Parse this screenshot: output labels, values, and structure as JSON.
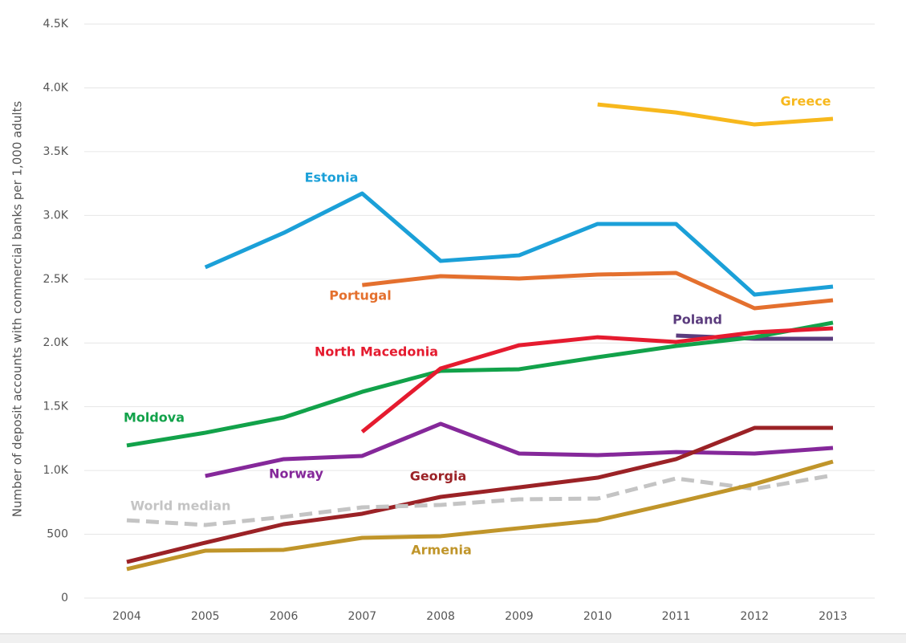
{
  "chart_data": {
    "type": "line",
    "y_label": "Number of deposit accounts with commercial banks per 1,000 adults",
    "categories": [
      "2004",
      "2005",
      "2006",
      "2007",
      "2008",
      "2009",
      "2010",
      "2011",
      "2012",
      "2013"
    ],
    "ylim": [
      0,
      4500
    ],
    "yticks": [
      0,
      500,
      {
        "value": 1000,
        "label": "1.0K"
      },
      {
        "value": 1500,
        "label": "1.5K"
      },
      {
        "value": 2000,
        "label": "2.0K"
      },
      {
        "value": 2500,
        "label": "2.5K"
      },
      {
        "value": 3000,
        "label": "3.0K"
      },
      {
        "value": 3500,
        "label": "3.5K"
      },
      {
        "value": 4000,
        "label": "4.0K"
      },
      {
        "value": 4500,
        "label": "4.5K"
      }
    ],
    "grid": true,
    "series": [
      {
        "name": "Greece",
        "color": "#f7b81d",
        "values": [
          null,
          null,
          null,
          null,
          null,
          null,
          3870,
          3807,
          3713,
          3757
        ]
      },
      {
        "name": "Estonia",
        "color": "#1ba0d8",
        "values": [
          null,
          2593,
          2863,
          3172,
          2643,
          2687,
          2933,
          2933,
          2379,
          2442
        ]
      },
      {
        "name": "Portugal",
        "color": "#e4702e",
        "values": [
          null,
          null,
          null,
          2454,
          2524,
          2505,
          2536,
          2549,
          2272,
          2335
        ]
      },
      {
        "name": "Poland",
        "color": "#5b3c7e",
        "values": [
          null,
          null,
          null,
          null,
          null,
          null,
          null,
          2058,
          2033,
          2033
        ]
      },
      {
        "name": "Moldova",
        "color": "#12a24a",
        "values": [
          1196,
          1296,
          1416,
          1617,
          1781,
          1794,
          1888,
          1976,
          2045,
          2159
        ]
      },
      {
        "name": "North Macedonia",
        "color": "#e51b2f",
        "values": [
          null,
          null,
          null,
          1303,
          1800,
          1982,
          2045,
          2008,
          2083,
          2115
        ]
      },
      {
        "name": "Norway",
        "color": "#85289a",
        "values": [
          null,
          957,
          1089,
          1114,
          1366,
          1133,
          1120,
          1145,
          1133,
          1177
        ]
      },
      {
        "name": "Georgia",
        "color": "#9b2226",
        "values": [
          283,
          434,
          579,
          661,
          793,
          868,
          944,
          1089,
          1334,
          1334
        ]
      },
      {
        "name": "World median",
        "color": "#c4c4c4",
        "dashed": true,
        "values": [
          610,
          573,
          636,
          711,
          730,
          774,
          780,
          938,
          856,
          963
        ]
      },
      {
        "name": "Armenia",
        "color": "#c0952a",
        "values": [
          227,
          371,
          378,
          472,
          485,
          548,
          610,
          749,
          894,
          1070
        ]
      }
    ]
  }
}
